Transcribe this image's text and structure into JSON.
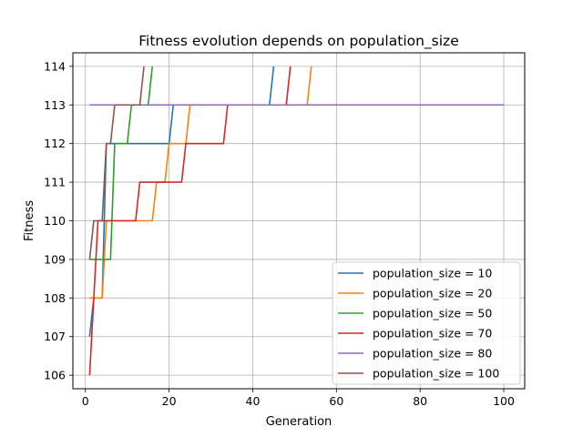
{
  "chart_data": {
    "type": "line",
    "title": "Fitness evolution depends on population_size",
    "xlabel": "Generation",
    "ylabel": "Fitness",
    "xlim": [
      -3,
      105
    ],
    "ylim": [
      105.65,
      114.35
    ],
    "xticks": [
      0,
      20,
      40,
      60,
      80,
      100
    ],
    "yticks": [
      106,
      107,
      108,
      109,
      110,
      111,
      112,
      113,
      114
    ],
    "grid": true,
    "legend_position": "lower-right",
    "series": [
      {
        "name": "population_size = 10",
        "color": "#1f77b4",
        "x": [
          1,
          2,
          3,
          4,
          5,
          6,
          20,
          21,
          44,
          45
        ],
        "y": [
          107,
          108,
          108,
          108,
          112,
          112,
          112,
          113,
          113,
          114
        ]
      },
      {
        "name": "population_size = 20",
        "color": "#ff7f0e",
        "x": [
          1,
          2,
          3,
          4,
          5,
          6,
          16,
          17,
          19,
          20,
          24,
          25,
          53,
          54
        ],
        "y": [
          108,
          108,
          108,
          108,
          110,
          110,
          110,
          111,
          111,
          112,
          112,
          113,
          113,
          114
        ]
      },
      {
        "name": "population_size = 50",
        "color": "#2ca02c",
        "x": [
          1,
          2,
          3,
          4,
          5,
          6,
          7,
          8,
          9,
          10,
          11,
          12,
          13,
          14,
          15,
          16
        ],
        "y": [
          109,
          109,
          109,
          109,
          109,
          109,
          112,
          112,
          112,
          112,
          113,
          113,
          113,
          113,
          113,
          114
        ]
      },
      {
        "name": "population_size = 70",
        "color": "#d62728",
        "x": [
          1,
          2,
          3,
          4,
          12,
          13,
          22,
          23,
          24,
          33,
          34,
          47,
          48,
          49
        ],
        "y": [
          106,
          108,
          110,
          110,
          110,
          111,
          111,
          111,
          112,
          112,
          113,
          113,
          113,
          114
        ]
      },
      {
        "name": "population_size = 80",
        "color": "#9467bd",
        "x": [
          1,
          100
        ],
        "y": [
          113,
          113
        ]
      },
      {
        "name": "population_size = 100",
        "color": "#8c564b",
        "x": [
          1,
          2,
          3,
          4,
          5,
          6,
          7,
          8,
          12,
          13,
          14
        ],
        "y": [
          109,
          110,
          110,
          110,
          112,
          112,
          113,
          113,
          113,
          113,
          114
        ]
      }
    ]
  }
}
